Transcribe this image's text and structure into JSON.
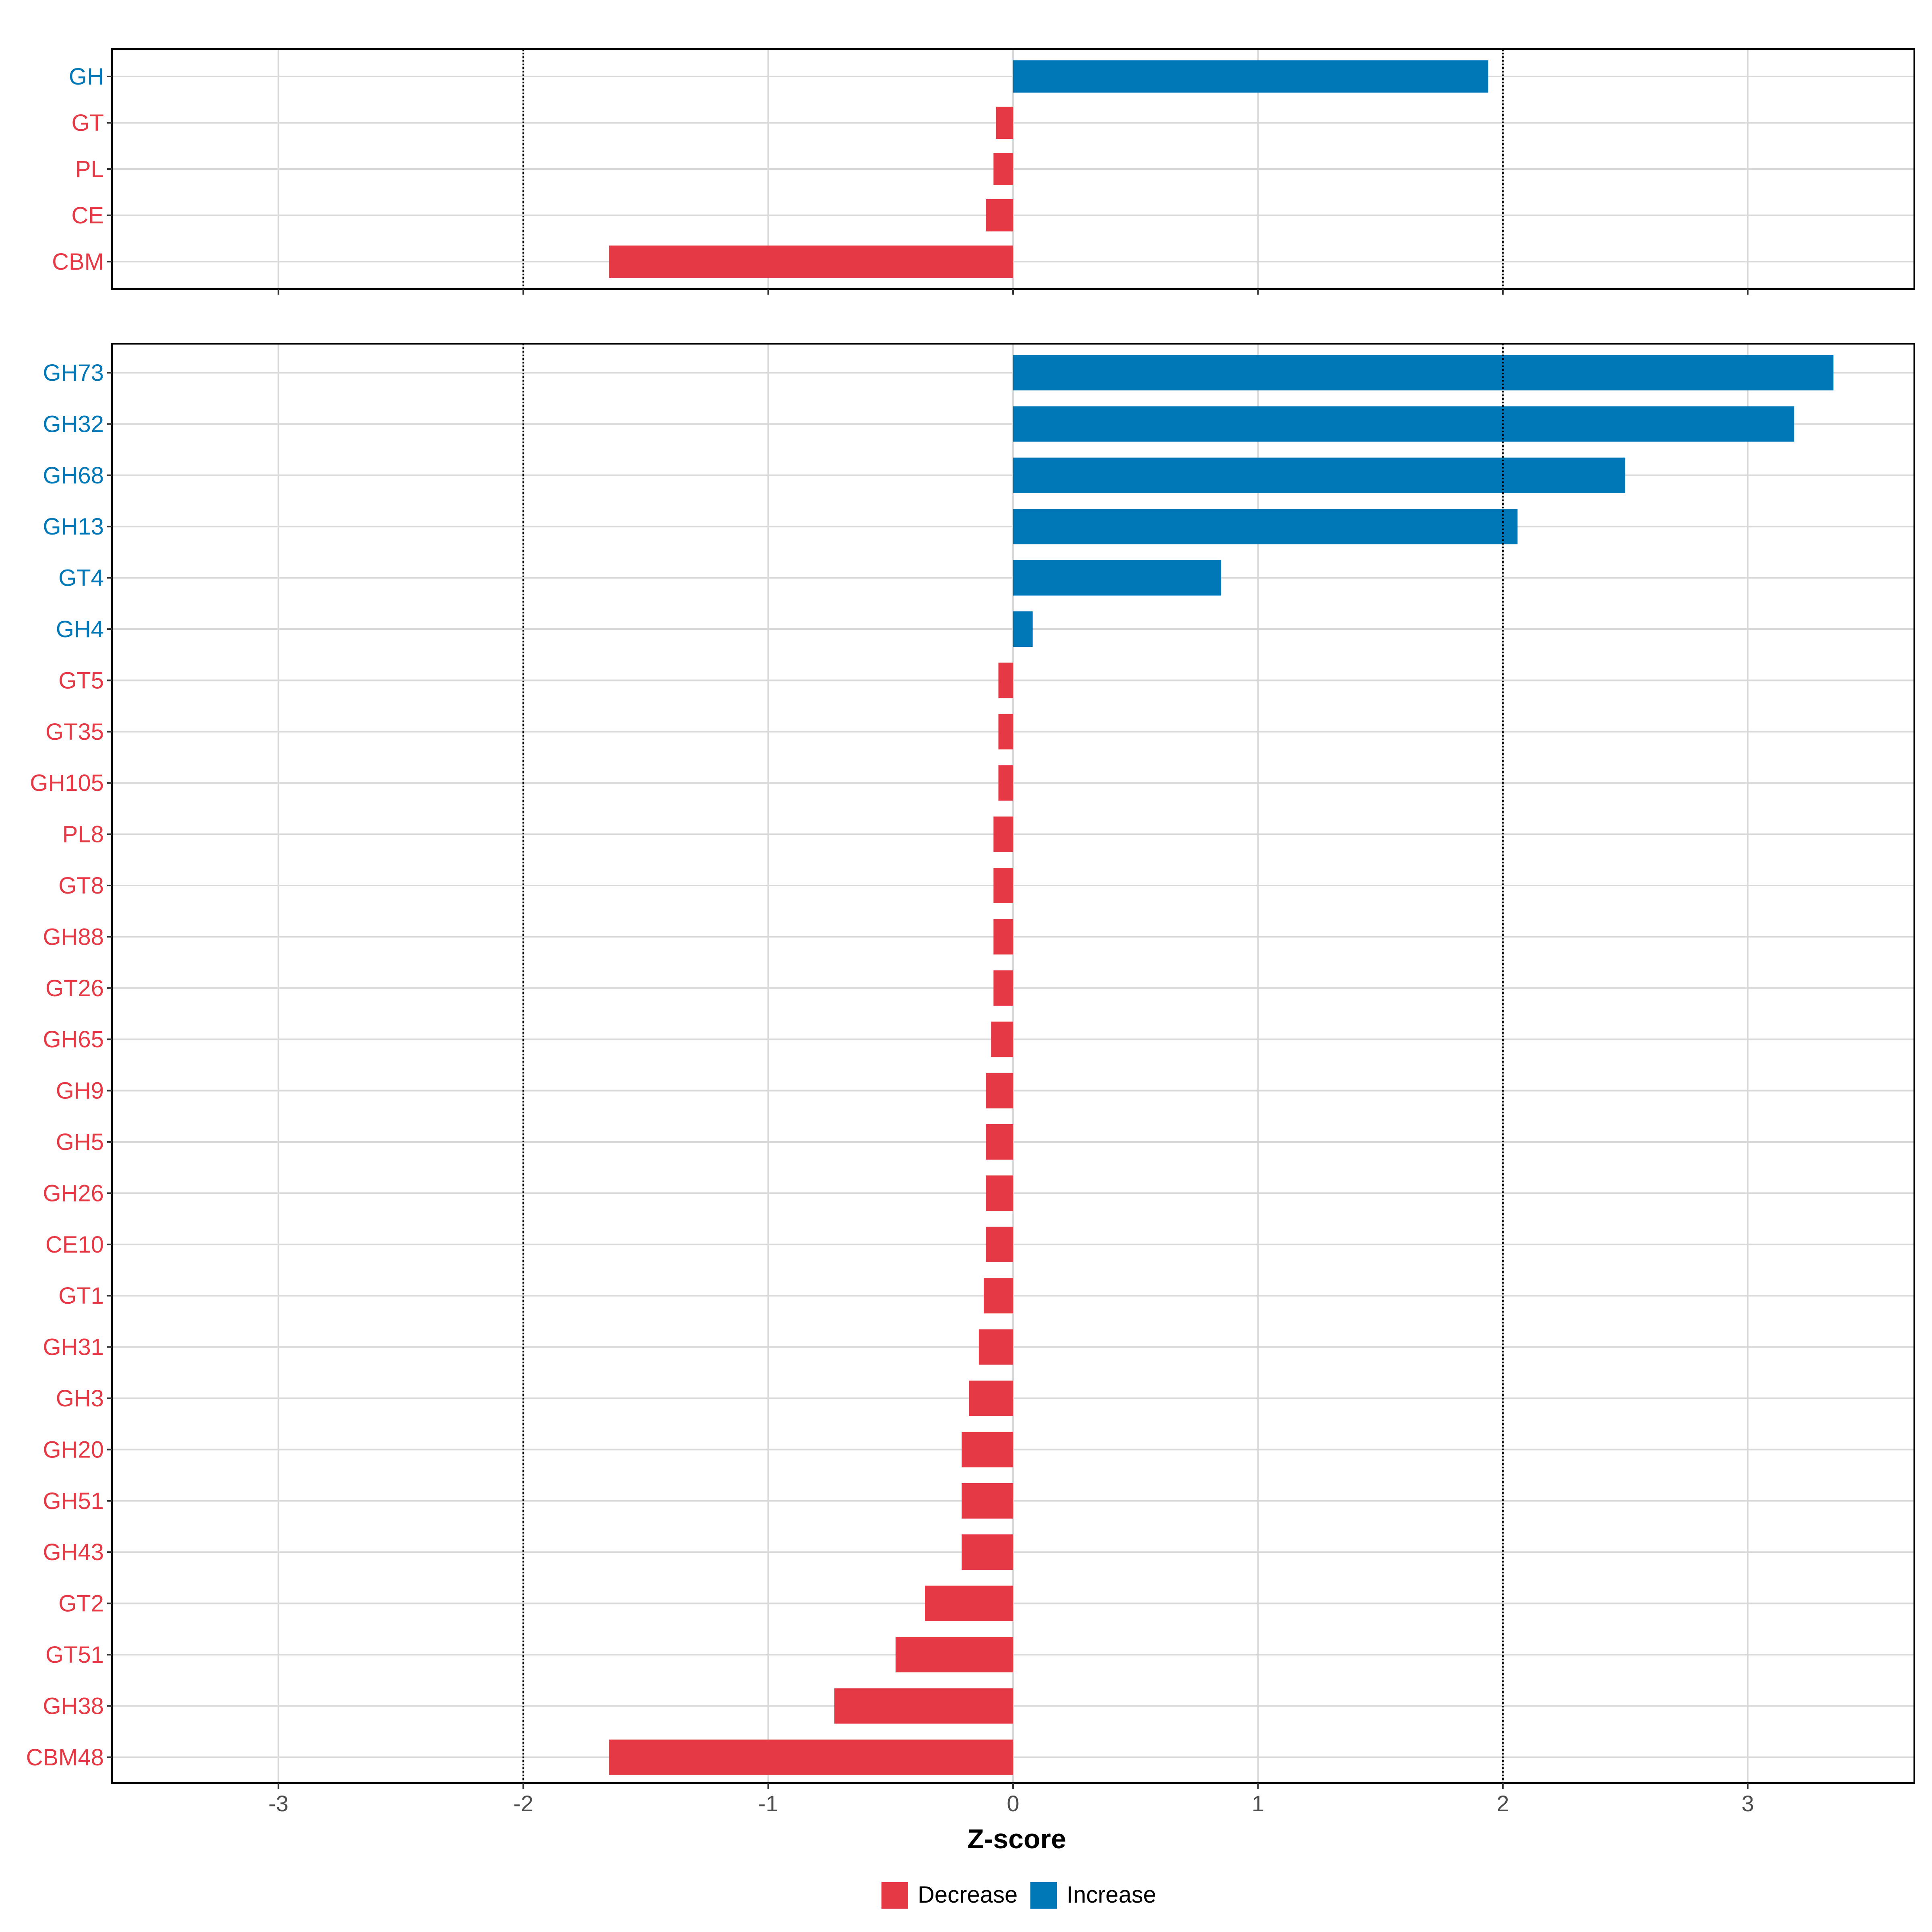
{
  "chart_data": [
    {
      "type": "bar",
      "orientation": "horizontal",
      "panel": "class",
      "categories": [
        "GH",
        "GT",
        "PL",
        "CE",
        "CBM"
      ],
      "values": [
        1.94,
        -0.07,
        -0.08,
        -0.11,
        -1.65
      ],
      "direction": [
        "Increase",
        "Decrease",
        "Decrease",
        "Decrease",
        "Decrease"
      ],
      "xlabel": "",
      "xlim": [
        -3.68,
        3.68
      ],
      "reference_lines": [
        -2,
        2
      ],
      "grid": true
    },
    {
      "type": "bar",
      "orientation": "horizontal",
      "panel": "family",
      "categories": [
        "GH73",
        "GH32",
        "GH68",
        "GH13",
        "GT4",
        "GH4",
        "GT5",
        "GT35",
        "GH105",
        "PL8",
        "GT8",
        "GH88",
        "GT26",
        "GH65",
        "GH9",
        "GH5",
        "GH26",
        "CE10",
        "GT1",
        "GH31",
        "GH3",
        "GH20",
        "GH51",
        "GH43",
        "GT2",
        "GT51",
        "GH38",
        "CBM48"
      ],
      "values": [
        3.35,
        3.19,
        2.5,
        2.06,
        0.85,
        0.08,
        -0.06,
        -0.06,
        -0.06,
        -0.08,
        -0.08,
        -0.08,
        -0.08,
        -0.09,
        -0.11,
        -0.11,
        -0.11,
        -0.11,
        -0.12,
        -0.14,
        -0.18,
        -0.21,
        -0.21,
        -0.21,
        -0.36,
        -0.48,
        -0.73,
        -1.65
      ],
      "direction": [
        "Increase",
        "Increase",
        "Increase",
        "Increase",
        "Increase",
        "Increase",
        "Decrease",
        "Decrease",
        "Decrease",
        "Decrease",
        "Decrease",
        "Decrease",
        "Decrease",
        "Decrease",
        "Decrease",
        "Decrease",
        "Decrease",
        "Decrease",
        "Decrease",
        "Decrease",
        "Decrease",
        "Decrease",
        "Decrease",
        "Decrease",
        "Decrease",
        "Decrease",
        "Decrease",
        "Decrease"
      ],
      "xlabel": "Z-score",
      "xlim": [
        -3.68,
        3.68
      ],
      "xticks": [
        -3,
        -2,
        -1,
        0,
        1,
        2,
        3
      ],
      "xtick_labels": [
        "-3",
        "-2",
        "-1",
        "0",
        "1",
        "2",
        "3"
      ],
      "reference_lines": [
        -2,
        2
      ],
      "grid": true
    }
  ],
  "legend": {
    "position": "bottom",
    "items": [
      {
        "label": "Decrease",
        "color": "#E63946"
      },
      {
        "label": "Increase",
        "color": "#0077B6"
      }
    ]
  },
  "colors": {
    "Decrease": "#E63946",
    "Increase": "#0077B6",
    "grid": "#D9D9D9"
  }
}
